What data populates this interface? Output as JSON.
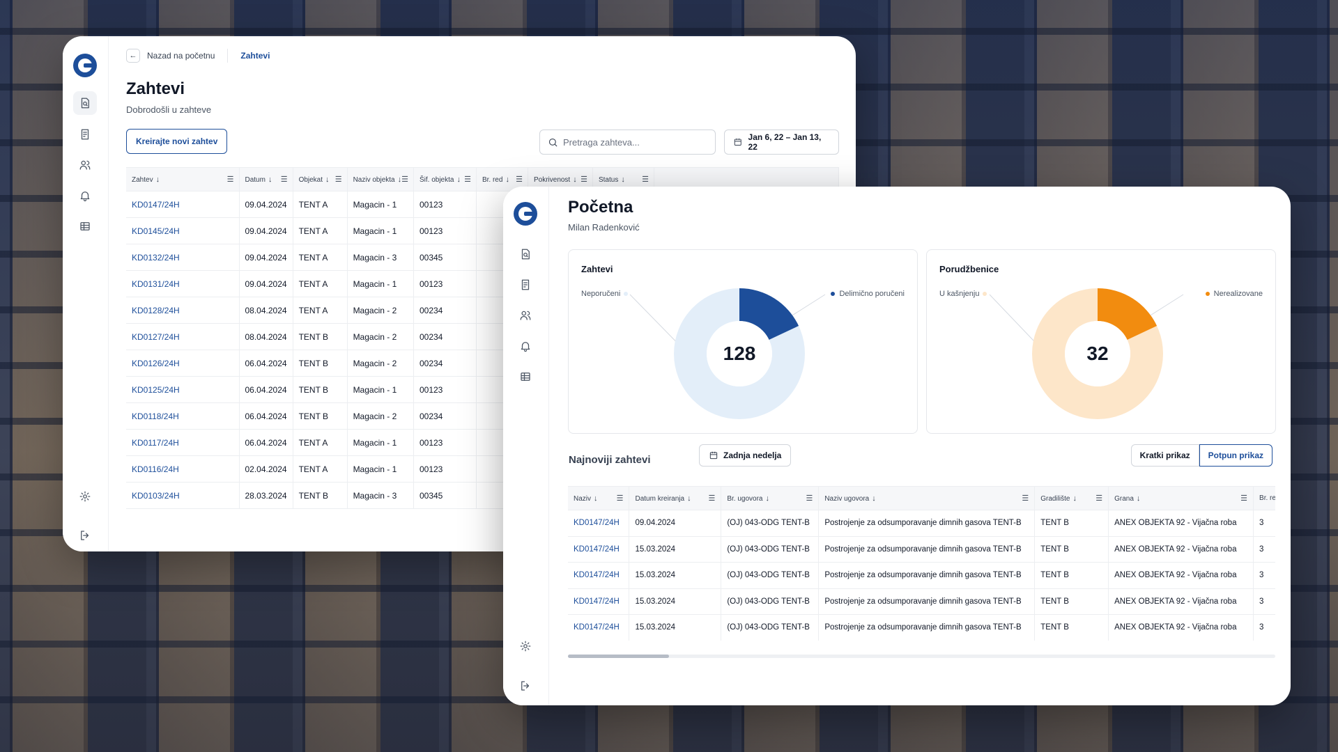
{
  "win1": {
    "breadcrumb": {
      "back_label": "Nazad na početnu",
      "current": "Zahtevi"
    },
    "title": "Zahtevi",
    "subtitle": "Dobrodošli u zahteve",
    "create_button": "Kreirajte novi zahtev",
    "search_placeholder": "Pretraga zahteva...",
    "date_range": "Jan 6, 22 – Jan 13, 22",
    "columns": [
      "Zahtev",
      "Datum",
      "Objekat",
      "Naziv objekta",
      "Šif. objekta",
      "Br. red",
      "Pokrivenost",
      "Status"
    ],
    "rows": [
      [
        "KD0147/24H",
        "09.04.2024",
        "TENT A",
        "Magacin - 1",
        "00123"
      ],
      [
        "KD0145/24H",
        "09.04.2024",
        "TENT A",
        "Magacin - 1",
        "00123"
      ],
      [
        "KD0132/24H",
        "09.04.2024",
        "TENT A",
        "Magacin - 3",
        "00345"
      ],
      [
        "KD0131/24H",
        "09.04.2024",
        "TENT A",
        "Magacin - 1",
        "00123"
      ],
      [
        "KD0128/24H",
        "08.04.2024",
        "TENT A",
        "Magacin - 2",
        "00234"
      ],
      [
        "KD0127/24H",
        "08.04.2024",
        "TENT B",
        "Magacin - 2",
        "00234"
      ],
      [
        "KD0126/24H",
        "06.04.2024",
        "TENT B",
        "Magacin - 2",
        "00234"
      ],
      [
        "KD0125/24H",
        "06.04.2024",
        "TENT B",
        "Magacin - 1",
        "00123"
      ],
      [
        "KD0118/24H",
        "06.04.2024",
        "TENT B",
        "Magacin - 2",
        "00234"
      ],
      [
        "KD0117/24H",
        "06.04.2024",
        "TENT A",
        "Magacin - 1",
        "00123"
      ],
      [
        "KD0116/24H",
        "02.04.2024",
        "TENT A",
        "Magacin - 1",
        "00123"
      ],
      [
        "KD0103/24H",
        "28.03.2024",
        "TENT B",
        "Magacin - 3",
        "00345"
      ]
    ]
  },
  "win2": {
    "title": "Početna",
    "subtitle": "Milan Radenković",
    "card_requests": {
      "title": "Zahtevi",
      "legend_left": "Neporučeni",
      "legend_right": "Delimično poručeni",
      "total": "128",
      "fraction_highlight": 0.18,
      "color_main": "#1d4e9a",
      "color_rest": "#e3eef9"
    },
    "card_orders": {
      "title": "Porudžbenice",
      "legend_left": "U kašnjenju",
      "legend_right": "Nerealizovane",
      "total": "32",
      "fraction_highlight": 0.18,
      "color_main": "#f28c0f",
      "color_rest": "#fde6c9"
    },
    "recent_title": "Najnoviji zahtevi",
    "last_week_button": "Zadnja nedelja",
    "view_short": "Kratki prikaz",
    "view_full": "Potpun prikaz",
    "columns": [
      "Naziv",
      "Datum kreiranja",
      "Br. ugovora",
      "Naziv ugovora",
      "Gradilište",
      "Grana",
      "Br. redova"
    ],
    "rows": [
      [
        "KD0147/24H",
        "09.04.2024",
        "(OJ) 043-ODG TENT-B",
        "Postrojenje za odsumporavanje dimnih gasova TENT-B",
        "TENT B",
        "ANEX OBJEKTA 92 - Vijačna roba",
        "3"
      ],
      [
        "KD0147/24H",
        "15.03.2024",
        "(OJ) 043-ODG TENT-B",
        "Postrojenje za odsumporavanje dimnih gasova TENT-B",
        "TENT B",
        "ANEX OBJEKTA 92 - Vijačna roba",
        "3"
      ],
      [
        "KD0147/24H",
        "15.03.2024",
        "(OJ) 043-ODG TENT-B",
        "Postrojenje za odsumporavanje dimnih gasova TENT-B",
        "TENT B",
        "ANEX OBJEKTA 92 - Vijačna roba",
        "3"
      ],
      [
        "KD0147/24H",
        "15.03.2024",
        "(OJ) 043-ODG TENT-B",
        "Postrojenje za odsumporavanje dimnih gasova TENT-B",
        "TENT B",
        "ANEX OBJEKTA 92 - Vijačna roba",
        "3"
      ],
      [
        "KD0147/24H",
        "15.03.2024",
        "(OJ) 043-ODG TENT-B",
        "Postrojenje za odsumporavanje dimnih gasova TENT-B",
        "TENT B",
        "ANEX OBJEKTA 92 - Vijačna roba",
        "3"
      ]
    ]
  },
  "icons": [
    "logo",
    "document-search-icon",
    "document-list-icon",
    "users-icon",
    "bell-icon",
    "table-icon",
    "gear-icon",
    "logout-icon"
  ]
}
